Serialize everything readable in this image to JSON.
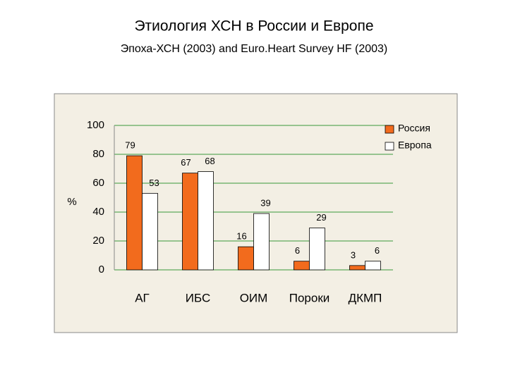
{
  "chart_data": {
    "type": "bar",
    "title": "Этиология ХСН в России и Европе",
    "subtitle": "Эпоха-ХСН (2003) and Euro.Heart Survey HF (2003)",
    "y_label": "%",
    "categories": [
      "АГ",
      "ИБС",
      "ОИМ",
      "Пороки",
      "ДКМП"
    ],
    "series": [
      {
        "name": "Россия",
        "color": "#f26b1d",
        "values": [
          79,
          67,
          16,
          6,
          3
        ]
      },
      {
        "name": "Европа",
        "color": "#ffffff",
        "values": [
          53,
          68,
          39,
          29,
          6
        ]
      }
    ],
    "ylim": [
      0,
      100
    ],
    "yticks": [
      0,
      20,
      40,
      60,
      80,
      100
    ],
    "grid": true,
    "legend": "top-right"
  }
}
